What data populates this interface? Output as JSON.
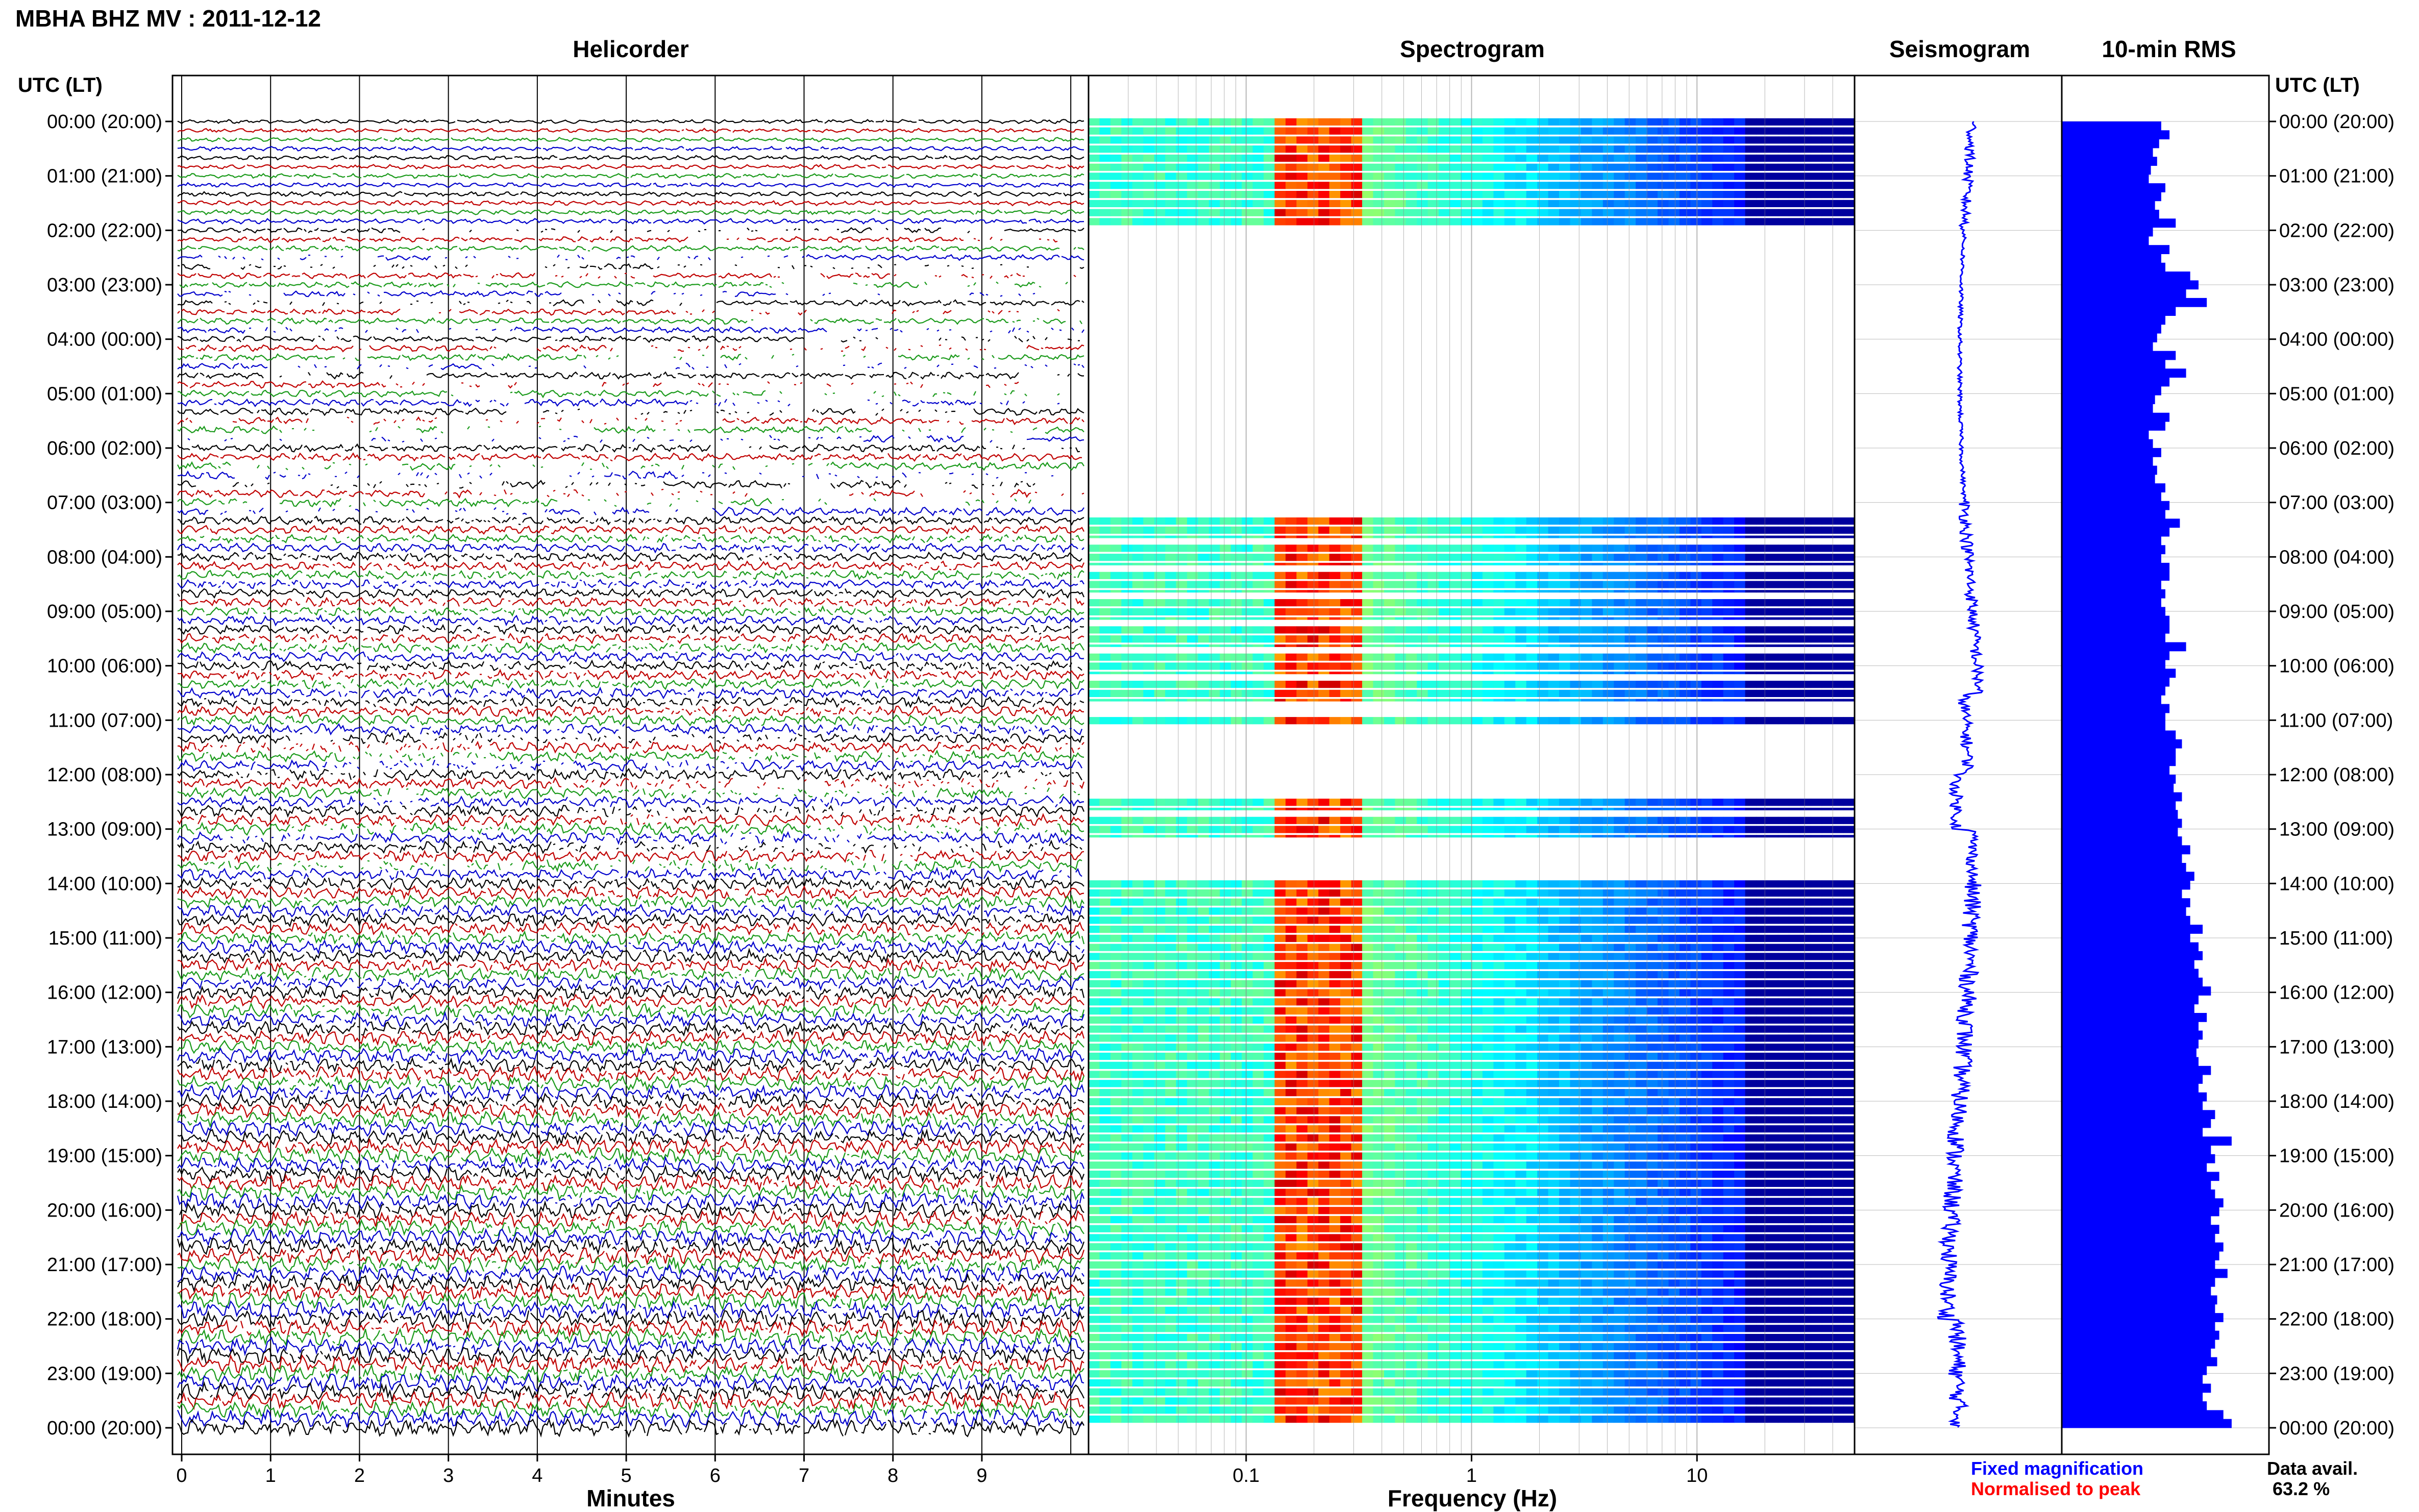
{
  "chart_data": {
    "type": "heatmap",
    "title": "MBHA BHZ MV : 2011-12-12",
    "colors": {
      "trace_cycle": [
        "#000000",
        "#c00000",
        "#1a9a1a",
        "#0000cc"
      ],
      "seismogram": "#0000ff",
      "rms_bar": "#0000ff",
      "fixed_magnification": "#0000ff",
      "normalised_to_peak": "#ff0000",
      "spectrogram_low": "#00007f",
      "spectrogram_high": "#ff0000"
    },
    "time_axis": {
      "label_left": "UTC (LT)",
      "label_right": "UTC (LT)",
      "ticks": [
        "00:00 (20:00)",
        "01:00 (21:00)",
        "02:00 (22:00)",
        "03:00 (23:00)",
        "04:00 (00:00)",
        "05:00 (01:00)",
        "06:00 (02:00)",
        "07:00 (03:00)",
        "08:00 (04:00)",
        "09:00 (05:00)",
        "10:00 (06:00)",
        "11:00 (07:00)",
        "12:00 (08:00)",
        "13:00 (09:00)",
        "14:00 (10:00)",
        "15:00 (11:00)",
        "16:00 (12:00)",
        "17:00 (13:00)",
        "18:00 (14:00)",
        "19:00 (15:00)",
        "20:00 (16:00)",
        "21:00 (17:00)",
        "22:00 (18:00)",
        "23:00 (19:00)",
        "00:00 (20:00)"
      ]
    },
    "helicorder": {
      "title": "Helicorder",
      "xlabel": "Minutes",
      "xticks": [
        "0",
        "1",
        "2",
        "3",
        "4",
        "5",
        "6",
        "7",
        "8",
        "9"
      ],
      "xlim": [
        0,
        10
      ],
      "grid": true
    },
    "spectrogram": {
      "title": "Spectrogram",
      "xlabel": "Frequency (Hz)",
      "xscale": "log",
      "xticks": [
        "0.1",
        "1",
        "10"
      ],
      "xlim": [
        0.02,
        50
      ],
      "hot_band_hz": [
        0.15,
        0.3
      ]
    },
    "seismogram": {
      "title": "Seismogram"
    },
    "rms": {
      "title": "10-min RMS",
      "values": [
        0.48,
        0.52,
        0.47,
        0.44,
        0.46,
        0.43,
        0.42,
        0.5,
        0.48,
        0.45,
        0.47,
        0.55,
        0.44,
        0.42,
        0.52,
        0.48,
        0.5,
        0.62,
        0.66,
        0.6,
        0.7,
        0.55,
        0.5,
        0.48,
        0.46,
        0.44,
        0.55,
        0.5,
        0.6,
        0.52,
        0.48,
        0.45,
        0.44,
        0.52,
        0.5,
        0.42,
        0.44,
        0.48,
        0.44,
        0.46,
        0.45,
        0.5,
        0.48,
        0.52,
        0.5,
        0.57,
        0.52,
        0.48,
        0.5,
        0.48,
        0.52,
        0.52,
        0.48,
        0.5,
        0.48,
        0.5,
        0.52,
        0.52,
        0.5,
        0.6,
        0.52,
        0.5,
        0.55,
        0.52,
        0.5,
        0.48,
        0.52,
        0.5,
        0.5,
        0.55,
        0.58,
        0.55,
        0.55,
        0.52,
        0.55,
        0.54,
        0.58,
        0.55,
        0.56,
        0.58,
        0.56,
        0.58,
        0.62,
        0.58,
        0.6,
        0.64,
        0.62,
        0.58,
        0.62,
        0.6,
        0.62,
        0.68,
        0.62,
        0.66,
        0.68,
        0.64,
        0.66,
        0.68,
        0.72,
        0.66,
        0.64,
        0.7,
        0.66,
        0.68,
        0.66,
        0.65,
        0.66,
        0.72,
        0.68,
        0.66,
        0.7,
        0.68,
        0.74,
        0.72,
        0.68,
        0.82,
        0.72,
        0.74,
        0.7,
        0.76,
        0.72,
        0.74,
        0.78,
        0.76,
        0.72,
        0.76,
        0.74,
        0.78,
        0.76,
        0.74,
        0.8,
        0.74,
        0.72,
        0.75,
        0.74,
        0.78,
        0.74,
        0.76,
        0.74,
        0.72,
        0.75,
        0.7,
        0.68,
        0.72,
        0.68,
        0.7,
        0.78,
        0.82
      ]
    },
    "legend": {
      "fixed_magnification": "Fixed magnification",
      "normalised_to_peak": "Normalised to peak",
      "data_avail_label": "Data avail.",
      "data_avail_value": "63.2 %",
      "data_avail_percent": 63.2
    }
  }
}
